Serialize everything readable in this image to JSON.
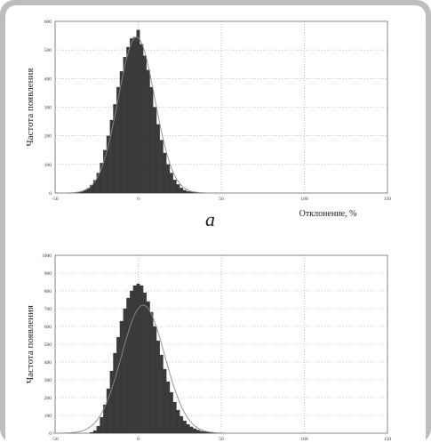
{
  "caption_a": "а",
  "chart_data": [
    {
      "type": "bar",
      "title": "",
      "xlabel": "Отклонение, %",
      "ylabel": "Частота появления",
      "xlim": [
        -50,
        150
      ],
      "ylim": [
        0,
        600
      ],
      "xticks": [
        "-50",
        "0",
        "50",
        "100",
        "150"
      ],
      "yticks": [
        "0",
        "100",
        "200",
        "300",
        "400",
        "500",
        "600"
      ],
      "grid": true,
      "histogram": {
        "bin_width": 2,
        "bins": [
          {
            "x": -36,
            "y": 2
          },
          {
            "x": -34,
            "y": 5
          },
          {
            "x": -32,
            "y": 10
          },
          {
            "x": -30,
            "y": 16
          },
          {
            "x": -28,
            "y": 28
          },
          {
            "x": -26,
            "y": 45
          },
          {
            "x": -24,
            "y": 70
          },
          {
            "x": -22,
            "y": 105
          },
          {
            "x": -20,
            "y": 150
          },
          {
            "x": -18,
            "y": 200
          },
          {
            "x": -16,
            "y": 255
          },
          {
            "x": -14,
            "y": 310
          },
          {
            "x": -12,
            "y": 370
          },
          {
            "x": -10,
            "y": 425
          },
          {
            "x": -8,
            "y": 475
          },
          {
            "x": -6,
            "y": 510
          },
          {
            "x": -4,
            "y": 540
          },
          {
            "x": -2,
            "y": 545
          },
          {
            "x": 0,
            "y": 570
          },
          {
            "x": 2,
            "y": 520
          },
          {
            "x": 4,
            "y": 480
          },
          {
            "x": 6,
            "y": 430
          },
          {
            "x": 8,
            "y": 370
          },
          {
            "x": 10,
            "y": 300
          },
          {
            "x": 12,
            "y": 240
          },
          {
            "x": 14,
            "y": 185
          },
          {
            "x": 16,
            "y": 140
          },
          {
            "x": 18,
            "y": 100
          },
          {
            "x": 20,
            "y": 70
          },
          {
            "x": 22,
            "y": 46
          },
          {
            "x": 24,
            "y": 30
          },
          {
            "x": 26,
            "y": 18
          },
          {
            "x": 28,
            "y": 10
          },
          {
            "x": 30,
            "y": 6
          },
          {
            "x": 32,
            "y": 4
          },
          {
            "x": 34,
            "y": 2
          },
          {
            "x": 36,
            "y": 1
          },
          {
            "x": 38,
            "y": 1
          },
          {
            "x": 40,
            "y": 1
          }
        ]
      },
      "fit_curve": {
        "type": "normal",
        "mean": -1,
        "sd": 11,
        "peak": 545
      }
    },
    {
      "type": "bar",
      "title": "",
      "xlabel": "",
      "ylabel": "Частота появления",
      "xlim": [
        -50,
        150
      ],
      "ylim": [
        0,
        1000
      ],
      "xticks": [
        "-50",
        "0",
        "50",
        "100",
        "150"
      ],
      "yticks": [
        "0",
        "100",
        "200",
        "300",
        "400",
        "500",
        "600",
        "700",
        "800",
        "900",
        "1000"
      ],
      "grid": true,
      "histogram": {
        "bin_width": 2,
        "bins": [
          {
            "x": -28,
            "y": 5
          },
          {
            "x": -26,
            "y": 15
          },
          {
            "x": -24,
            "y": 40
          },
          {
            "x": -22,
            "y": 90
          },
          {
            "x": -20,
            "y": 160
          },
          {
            "x": -18,
            "y": 250
          },
          {
            "x": -16,
            "y": 350
          },
          {
            "x": -14,
            "y": 450
          },
          {
            "x": -12,
            "y": 540
          },
          {
            "x": -10,
            "y": 630
          },
          {
            "x": -8,
            "y": 700
          },
          {
            "x": -6,
            "y": 760
          },
          {
            "x": -4,
            "y": 800
          },
          {
            "x": -2,
            "y": 830
          },
          {
            "x": 0,
            "y": 840
          },
          {
            "x": 2,
            "y": 830
          },
          {
            "x": 4,
            "y": 790
          },
          {
            "x": 6,
            "y": 740
          },
          {
            "x": 8,
            "y": 680
          },
          {
            "x": 10,
            "y": 600
          },
          {
            "x": 12,
            "y": 520
          },
          {
            "x": 14,
            "y": 440
          },
          {
            "x": 16,
            "y": 360
          },
          {
            "x": 18,
            "y": 290
          },
          {
            "x": 20,
            "y": 230
          },
          {
            "x": 22,
            "y": 175
          },
          {
            "x": 24,
            "y": 130
          },
          {
            "x": 26,
            "y": 95
          },
          {
            "x": 28,
            "y": 70
          },
          {
            "x": 30,
            "y": 50
          },
          {
            "x": 32,
            "y": 36
          },
          {
            "x": 34,
            "y": 26
          },
          {
            "x": 36,
            "y": 18
          },
          {
            "x": 38,
            "y": 12
          },
          {
            "x": 40,
            "y": 9
          },
          {
            "x": 42,
            "y": 6
          },
          {
            "x": 44,
            "y": 4
          },
          {
            "x": 46,
            "y": 3
          },
          {
            "x": 48,
            "y": 2
          },
          {
            "x": 50,
            "y": 1
          }
        ]
      },
      "fit_curve": {
        "type": "normal",
        "mean": 3,
        "sd": 13,
        "peak": 720
      }
    }
  ]
}
